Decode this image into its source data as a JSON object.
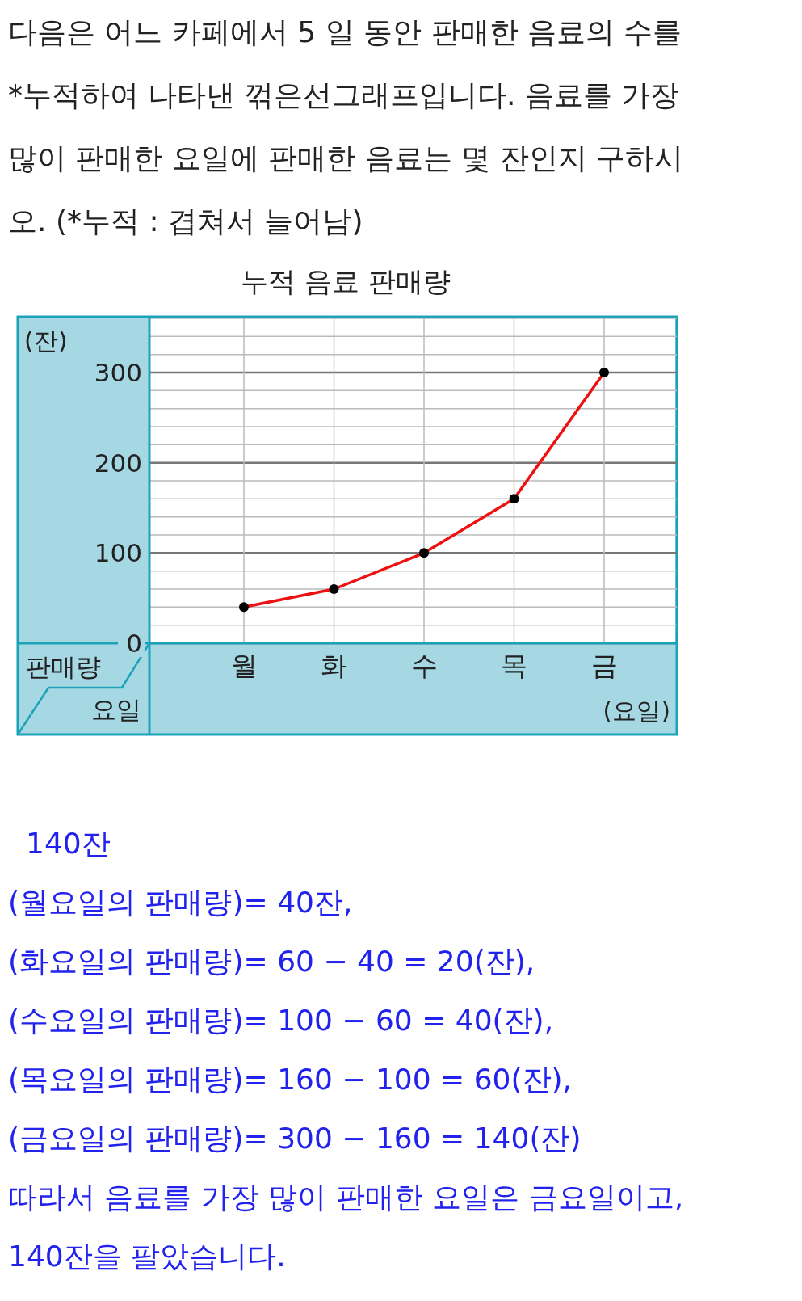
{
  "chart_data": {
    "type": "line",
    "title": "누적 음료 판매량",
    "xlabel": "(요일)",
    "ylabel": "(잔)",
    "categories": [
      "월",
      "화",
      "수",
      "목",
      "금"
    ],
    "series": [
      {
        "color": "#ee1111",
        "values": [
          40,
          60,
          100,
          160,
          300
        ]
      }
    ],
    "ylim": [
      0,
      360
    ],
    "yticks": [
      0,
      100,
      200,
      300
    ],
    "grid": true,
    "marker": "circle",
    "line_style": "solid",
    "annotations": [
      "다음은 어느 카페에서 5 일 동안 판매한 음료의 수를",
      "*누적하여 나타낸 꺾은선그래프입니다. 음료를 가장",
      "많이 판매한 요일에 판매한 음료는 몇 잔인지 구하시",
      "오. (*누적 : 겹쳐서 늘어남)",
      "판매량",
      "요일",
      "140잔",
      "(월요일의 판매량)= 40잔,",
      "(화요일의 판매량)= 60 − 40 = 20(잔),",
      "(수요일의 판매량)= 100 − 60 = 40(잔),",
      "(목요일의 판매량)= 160 − 100 = 60(잔),",
      "(금요일의 판매량)= 300 − 160 = 140(잔)",
      "따라서 음료를 가장 많이 판매한 요일은 금요일이고,",
      "140잔을 팔았습니다."
    ]
  }
}
